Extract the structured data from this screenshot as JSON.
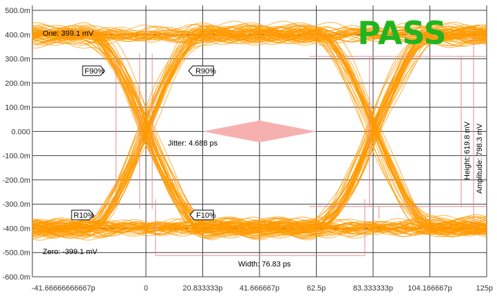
{
  "status": {
    "label": "PASS",
    "color": "#22b41e"
  },
  "colors": {
    "trace": "#ff9900",
    "mask": "#f7b0b0",
    "marker": "#e88a8a",
    "grid": "#3a3a3a",
    "zero_label": "#e08a00"
  },
  "chart_data": {
    "type": "eye-diagram",
    "x_ticks": [
      {
        "value": -41.6667,
        "label": "-41.66666666667p"
      },
      {
        "value": 0,
        "label": "0"
      },
      {
        "value": 20.8333,
        "label": "20.833333p"
      },
      {
        "value": 41.6667,
        "label": "41.666667p"
      },
      {
        "value": 62.5,
        "label": "62.5p"
      },
      {
        "value": 83.3333,
        "label": "83.333333p"
      },
      {
        "value": 104.1667,
        "label": "104.166667p"
      },
      {
        "value": 125,
        "label": "125p"
      }
    ],
    "y_ticks": [
      {
        "value": 500,
        "label": "500.0m"
      },
      {
        "value": 400,
        "label": "400.0m"
      },
      {
        "value": 300,
        "label": "300.0m"
      },
      {
        "value": 200,
        "label": "200.0m"
      },
      {
        "value": 100,
        "label": "100.0m"
      },
      {
        "value": 0,
        "label": "0.000"
      },
      {
        "value": -100,
        "label": "-100.0m"
      },
      {
        "value": -200,
        "label": "-200.0m"
      },
      {
        "value": -300,
        "label": "-300.0m"
      },
      {
        "value": -400,
        "label": "-400.0m"
      },
      {
        "value": -500,
        "label": "-500.0m"
      },
      {
        "value": -600,
        "label": "-600.0m"
      }
    ],
    "xlim": [
      -41.6667,
      125
    ],
    "ylim": [
      -600,
      520
    ],
    "grid": true,
    "one_level_mv": 399.1,
    "zero_level_mv": -399.1,
    "crossings_ps": [
      0,
      83.3333
    ],
    "mask": {
      "x": [
        20.8333,
        41.6667,
        62.5
      ],
      "y_half": 45
    },
    "annotations": {
      "one": "One: 399.1 mV",
      "zero": "Zero: -399.1 mV",
      "f90": "F90%",
      "r90": "R90%",
      "r10": "R10%",
      "f10": "F10%",
      "jitter": "Jitter: 4.688 ps",
      "width": "Width: 76.83 ps",
      "height": "Height: 619.8 mV",
      "amplitude": "Amplitude: 798.3 mV"
    }
  }
}
